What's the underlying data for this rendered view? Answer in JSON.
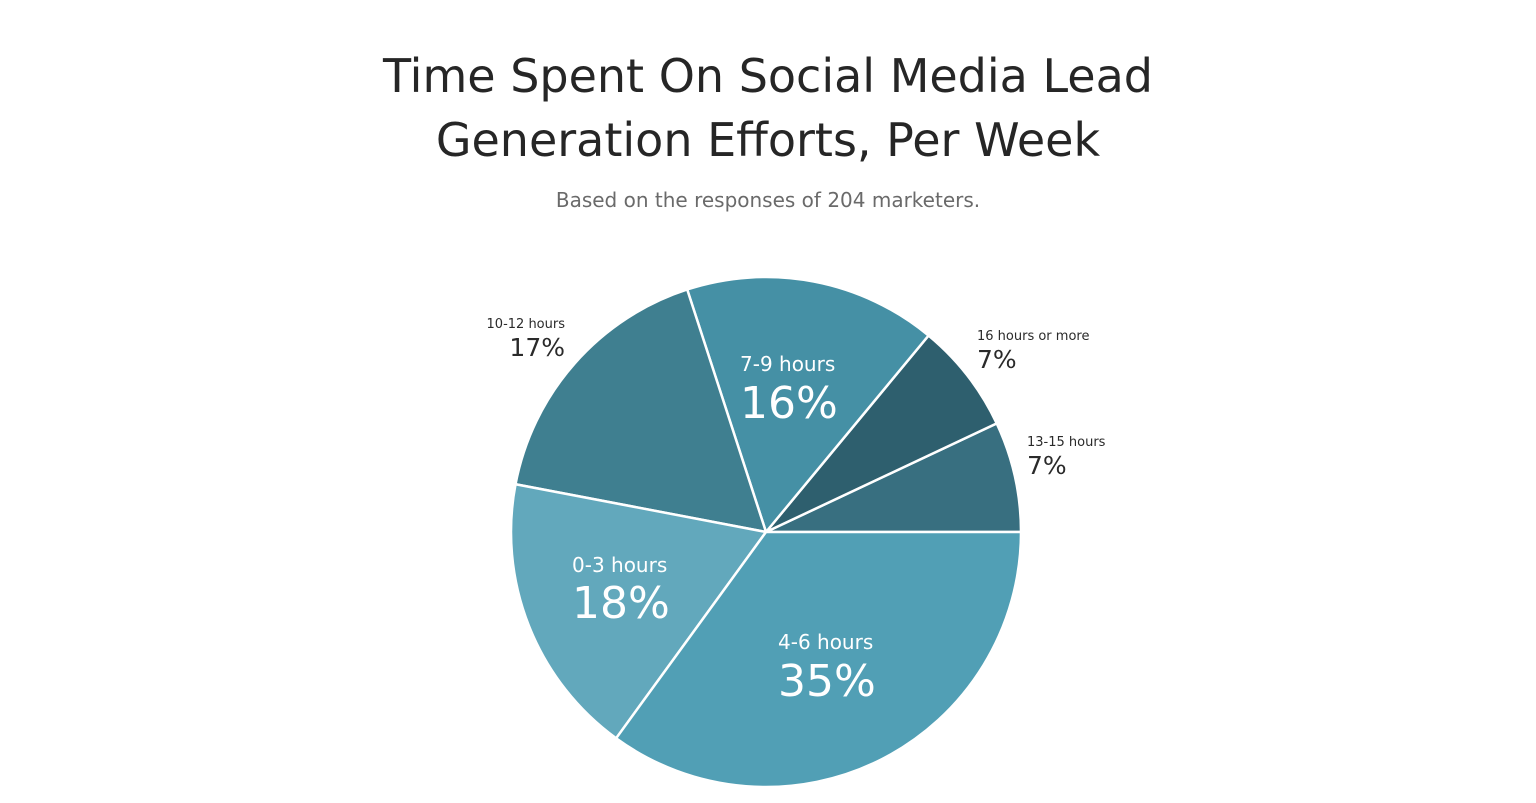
{
  "chart_data": {
    "type": "pie",
    "title_lines": [
      "Time Spent On Social Media Lead",
      "Generation Efforts, Per Week"
    ],
    "subtitle": "Based on the responses of 204 marketers.",
    "slices": [
      {
        "label": "13-15 hours",
        "value": 7,
        "value_label": "7%",
        "color": "#386f80"
      },
      {
        "label": "16 hours or more",
        "value": 7,
        "value_label": "7%",
        "color": "#2e5f6e"
      },
      {
        "label": "7-9 hours",
        "value": 16,
        "value_label": "16%",
        "color": "#4590a5"
      },
      {
        "label": "10-12 hours",
        "value": 17,
        "value_label": "17%",
        "color": "#3f7f90"
      },
      {
        "label": "0-3 hours",
        "value": 18,
        "value_label": "18%",
        "color": "#62a8bc"
      },
      {
        "label": "4-6 hours",
        "value": 35,
        "value_label": "35%",
        "color": "#519fb5"
      }
    ]
  }
}
